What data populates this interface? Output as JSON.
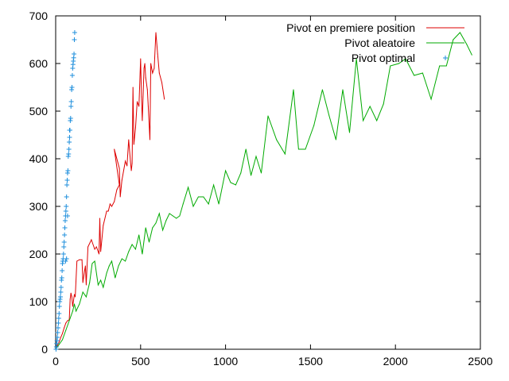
{
  "chart_data": {
    "type": "line",
    "title": "",
    "xlabel": "",
    "ylabel": "",
    "xlim": [
      0,
      2500
    ],
    "ylim": [
      0,
      700
    ],
    "x_ticks": [
      0,
      500,
      1000,
      1500,
      2000,
      2500
    ],
    "y_ticks": [
      0,
      100,
      200,
      300,
      400,
      500,
      600,
      700
    ],
    "grid": false,
    "legend_position": "top-right",
    "series": [
      {
        "name": "Pivot en premiere position",
        "color": "#dd0000",
        "style": "line",
        "points": [
          [
            0,
            0
          ],
          [
            10,
            8
          ],
          [
            20,
            15
          ],
          [
            30,
            25
          ],
          [
            40,
            33
          ],
          [
            50,
            45
          ],
          [
            60,
            55
          ],
          [
            70,
            60
          ],
          [
            80,
            62
          ],
          [
            85,
            105
          ],
          [
            90,
            118
          ],
          [
            95,
            110
          ],
          [
            100,
            90
          ],
          [
            110,
            115
          ],
          [
            115,
            110
          ],
          [
            125,
            185
          ],
          [
            140,
            188
          ],
          [
            155,
            188
          ],
          [
            160,
            140
          ],
          [
            170,
            165
          ],
          [
            175,
            175
          ],
          [
            180,
            135
          ],
          [
            190,
            215
          ],
          [
            210,
            230
          ],
          [
            230,
            210
          ],
          [
            240,
            215
          ],
          [
            255,
            200
          ],
          [
            260,
            275
          ],
          [
            265,
            205
          ],
          [
            280,
            260
          ],
          [
            300,
            290
          ],
          [
            310,
            290
          ],
          [
            320,
            305
          ],
          [
            330,
            300
          ],
          [
            345,
            310
          ],
          [
            360,
            335
          ],
          [
            375,
            345
          ],
          [
            345,
            420
          ],
          [
            375,
            380
          ],
          [
            380,
            320
          ],
          [
            390,
            355
          ],
          [
            410,
            395
          ],
          [
            420,
            385
          ],
          [
            430,
            440
          ],
          [
            440,
            395
          ],
          [
            445,
            375
          ],
          [
            450,
            390
          ],
          [
            455,
            550
          ],
          [
            460,
            430
          ],
          [
            470,
            465
          ],
          [
            480,
            520
          ],
          [
            490,
            510
          ],
          [
            500,
            610
          ],
          [
            505,
            530
          ],
          [
            510,
            480
          ],
          [
            520,
            590
          ],
          [
            525,
            600
          ],
          [
            530,
            570
          ],
          [
            540,
            545
          ],
          [
            545,
            510
          ],
          [
            555,
            440
          ],
          [
            560,
            600
          ],
          [
            570,
            580
          ],
          [
            580,
            590
          ],
          [
            590,
            665
          ],
          [
            600,
            620
          ],
          [
            610,
            580
          ],
          [
            625,
            560
          ],
          [
            640,
            525
          ]
        ]
      },
      {
        "name": "Pivot aleatoire",
        "color": "#00aa00",
        "style": "line",
        "points": [
          [
            0,
            0
          ],
          [
            20,
            10
          ],
          [
            40,
            20
          ],
          [
            60,
            40
          ],
          [
            80,
            60
          ],
          [
            100,
            80
          ],
          [
            110,
            95
          ],
          [
            120,
            80
          ],
          [
            140,
            95
          ],
          [
            160,
            120
          ],
          [
            180,
            110
          ],
          [
            200,
            140
          ],
          [
            215,
            180
          ],
          [
            230,
            185
          ],
          [
            250,
            135
          ],
          [
            265,
            145
          ],
          [
            280,
            130
          ],
          [
            300,
            160
          ],
          [
            315,
            175
          ],
          [
            330,
            185
          ],
          [
            350,
            150
          ],
          [
            370,
            175
          ],
          [
            390,
            190
          ],
          [
            410,
            185
          ],
          [
            430,
            205
          ],
          [
            450,
            220
          ],
          [
            470,
            210
          ],
          [
            490,
            240
          ],
          [
            510,
            200
          ],
          [
            530,
            255
          ],
          [
            550,
            225
          ],
          [
            570,
            255
          ],
          [
            590,
            265
          ],
          [
            610,
            285
          ],
          [
            630,
            250
          ],
          [
            650,
            270
          ],
          [
            670,
            285
          ],
          [
            690,
            280
          ],
          [
            710,
            275
          ],
          [
            730,
            280
          ],
          [
            750,
            305
          ],
          [
            780,
            340
          ],
          [
            810,
            300
          ],
          [
            840,
            320
          ],
          [
            870,
            320
          ],
          [
            900,
            305
          ],
          [
            930,
            345
          ],
          [
            960,
            305
          ],
          [
            1000,
            375
          ],
          [
            1030,
            350
          ],
          [
            1060,
            345
          ],
          [
            1090,
            370
          ],
          [
            1120,
            420
          ],
          [
            1150,
            365
          ],
          [
            1180,
            405
          ],
          [
            1210,
            370
          ],
          [
            1250,
            490
          ],
          [
            1300,
            440
          ],
          [
            1350,
            410
          ],
          [
            1400,
            545
          ],
          [
            1430,
            420
          ],
          [
            1470,
            420
          ],
          [
            1520,
            470
          ],
          [
            1570,
            545
          ],
          [
            1610,
            490
          ],
          [
            1650,
            440
          ],
          [
            1690,
            545
          ],
          [
            1730,
            455
          ],
          [
            1770,
            610
          ],
          [
            1810,
            480
          ],
          [
            1850,
            510
          ],
          [
            1890,
            480
          ],
          [
            1930,
            515
          ],
          [
            1970,
            595
          ],
          [
            2020,
            600
          ],
          [
            2060,
            610
          ],
          [
            2110,
            575
          ],
          [
            2160,
            580
          ],
          [
            2210,
            525
          ],
          [
            2260,
            595
          ],
          [
            2300,
            595
          ],
          [
            2340,
            650
          ],
          [
            2380,
            665
          ],
          [
            2420,
            640
          ],
          [
            2450,
            618
          ]
        ]
      },
      {
        "name": "Pivot optimal",
        "color": "#1f8fdc",
        "style": "points",
        "points": [
          [
            2,
            0
          ],
          [
            4,
            5
          ],
          [
            6,
            12
          ],
          [
            8,
            18
          ],
          [
            10,
            25
          ],
          [
            12,
            35
          ],
          [
            14,
            45
          ],
          [
            16,
            55
          ],
          [
            18,
            65
          ],
          [
            20,
            75
          ],
          [
            22,
            90
          ],
          [
            24,
            100
          ],
          [
            26,
            105
          ],
          [
            28,
            110
          ],
          [
            30,
            120
          ],
          [
            32,
            130
          ],
          [
            34,
            145
          ],
          [
            36,
            150
          ],
          [
            38,
            165
          ],
          [
            40,
            180
          ],
          [
            42,
            185
          ],
          [
            44,
            190
          ],
          [
            46,
            200
          ],
          [
            48,
            215
          ],
          [
            50,
            225
          ],
          [
            52,
            240
          ],
          [
            54,
            255
          ],
          [
            56,
            270
          ],
          [
            58,
            280
          ],
          [
            60,
            290
          ],
          [
            62,
            300
          ],
          [
            64,
            320
          ],
          [
            66,
            345
          ],
          [
            68,
            355
          ],
          [
            70,
            370
          ],
          [
            72,
            375
          ],
          [
            74,
            405
          ],
          [
            76,
            410
          ],
          [
            78,
            420
          ],
          [
            80,
            435
          ],
          [
            82,
            445
          ],
          [
            84,
            460
          ],
          [
            86,
            480
          ],
          [
            88,
            485
          ],
          [
            90,
            510
          ],
          [
            92,
            520
          ],
          [
            94,
            545
          ],
          [
            96,
            550
          ],
          [
            98,
            575
          ],
          [
            100,
            590
          ],
          [
            102,
            598
          ],
          [
            104,
            605
          ],
          [
            106,
            612
          ],
          [
            108,
            620
          ],
          [
            110,
            650
          ],
          [
            112,
            665
          ],
          [
            58,
            185
          ],
          [
            64,
            190
          ],
          [
            70,
            280
          ],
          [
            82,
            460
          ]
        ]
      }
    ]
  }
}
